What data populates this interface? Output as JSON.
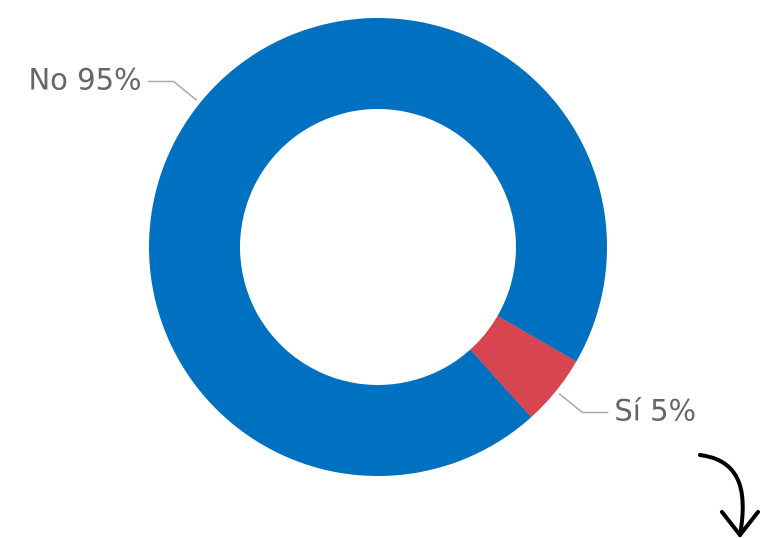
{
  "chart_data": {
    "type": "donut",
    "categories": [
      "No",
      "Sí"
    ],
    "values": [
      95,
      5
    ],
    "value_labels": [
      "95%",
      "5%"
    ],
    "colors": [
      "#0070c0",
      "#d64550"
    ]
  }
}
